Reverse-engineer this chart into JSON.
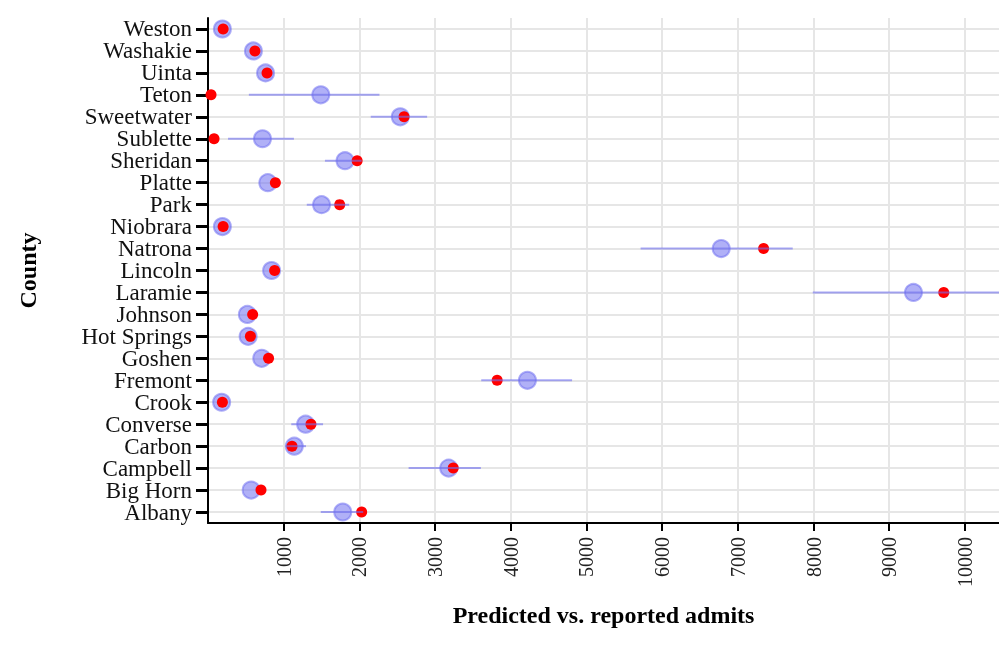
{
  "chart_data": {
    "type": "scatter",
    "orientation": "horizontal",
    "xlabel": "Predicted vs. reported admits",
    "ylabel": "County",
    "categories": [
      "Weston",
      "Washakie",
      "Uinta",
      "Teton",
      "Sweetwater",
      "Sublette",
      "Sheridan",
      "Platte",
      "Park",
      "Niobrara",
      "Natrona",
      "Lincoln",
      "Laramie",
      "Johnson",
      "Hot Springs",
      "Goshen",
      "Fremont",
      "Crook",
      "Converse",
      "Carbon",
      "Campbell",
      "Big Horn",
      "Albany"
    ],
    "series": [
      {
        "color": "#7070f0",
        "marker": "circle",
        "values": [
          190,
          600,
          760,
          1490,
          2540,
          720,
          1810,
          790,
          1500,
          190,
          6780,
          840,
          9320,
          520,
          530,
          710,
          4220,
          180,
          1290,
          1140,
          3180,
          570,
          1780
        ],
        "errors": [
          null,
          null,
          null,
          [
            540,
            2265
          ],
          [
            2150,
            2895
          ],
          [
            265,
            1135
          ],
          [
            1545,
            2030
          ],
          null,
          [
            1305,
            1865
          ],
          null,
          [
            5715,
            7725
          ],
          null,
          [
            7990,
            10450
          ],
          null,
          null,
          null,
          [
            3610,
            4810
          ],
          null,
          [
            1100,
            1520
          ],
          [
            1025,
            1295
          ],
          [
            2650,
            3605
          ],
          null,
          [
            1490,
            2050
          ]
        ]
      },
      {
        "color": "#ff0000",
        "marker": "circle",
        "values": [
          200,
          620,
          780,
          40,
          2590,
          80,
          1970,
          890,
          1740,
          200,
          7340,
          880,
          9720,
          590,
          560,
          800,
          3820,
          190,
          1360,
          1110,
          3240,
          700,
          2030
        ]
      }
    ],
    "xlim": [
      0,
      10450
    ],
    "xticks": [
      1000,
      2000,
      3000,
      4000,
      5000,
      6000,
      7000,
      8000,
      9000,
      10000
    ],
    "grid": true
  }
}
